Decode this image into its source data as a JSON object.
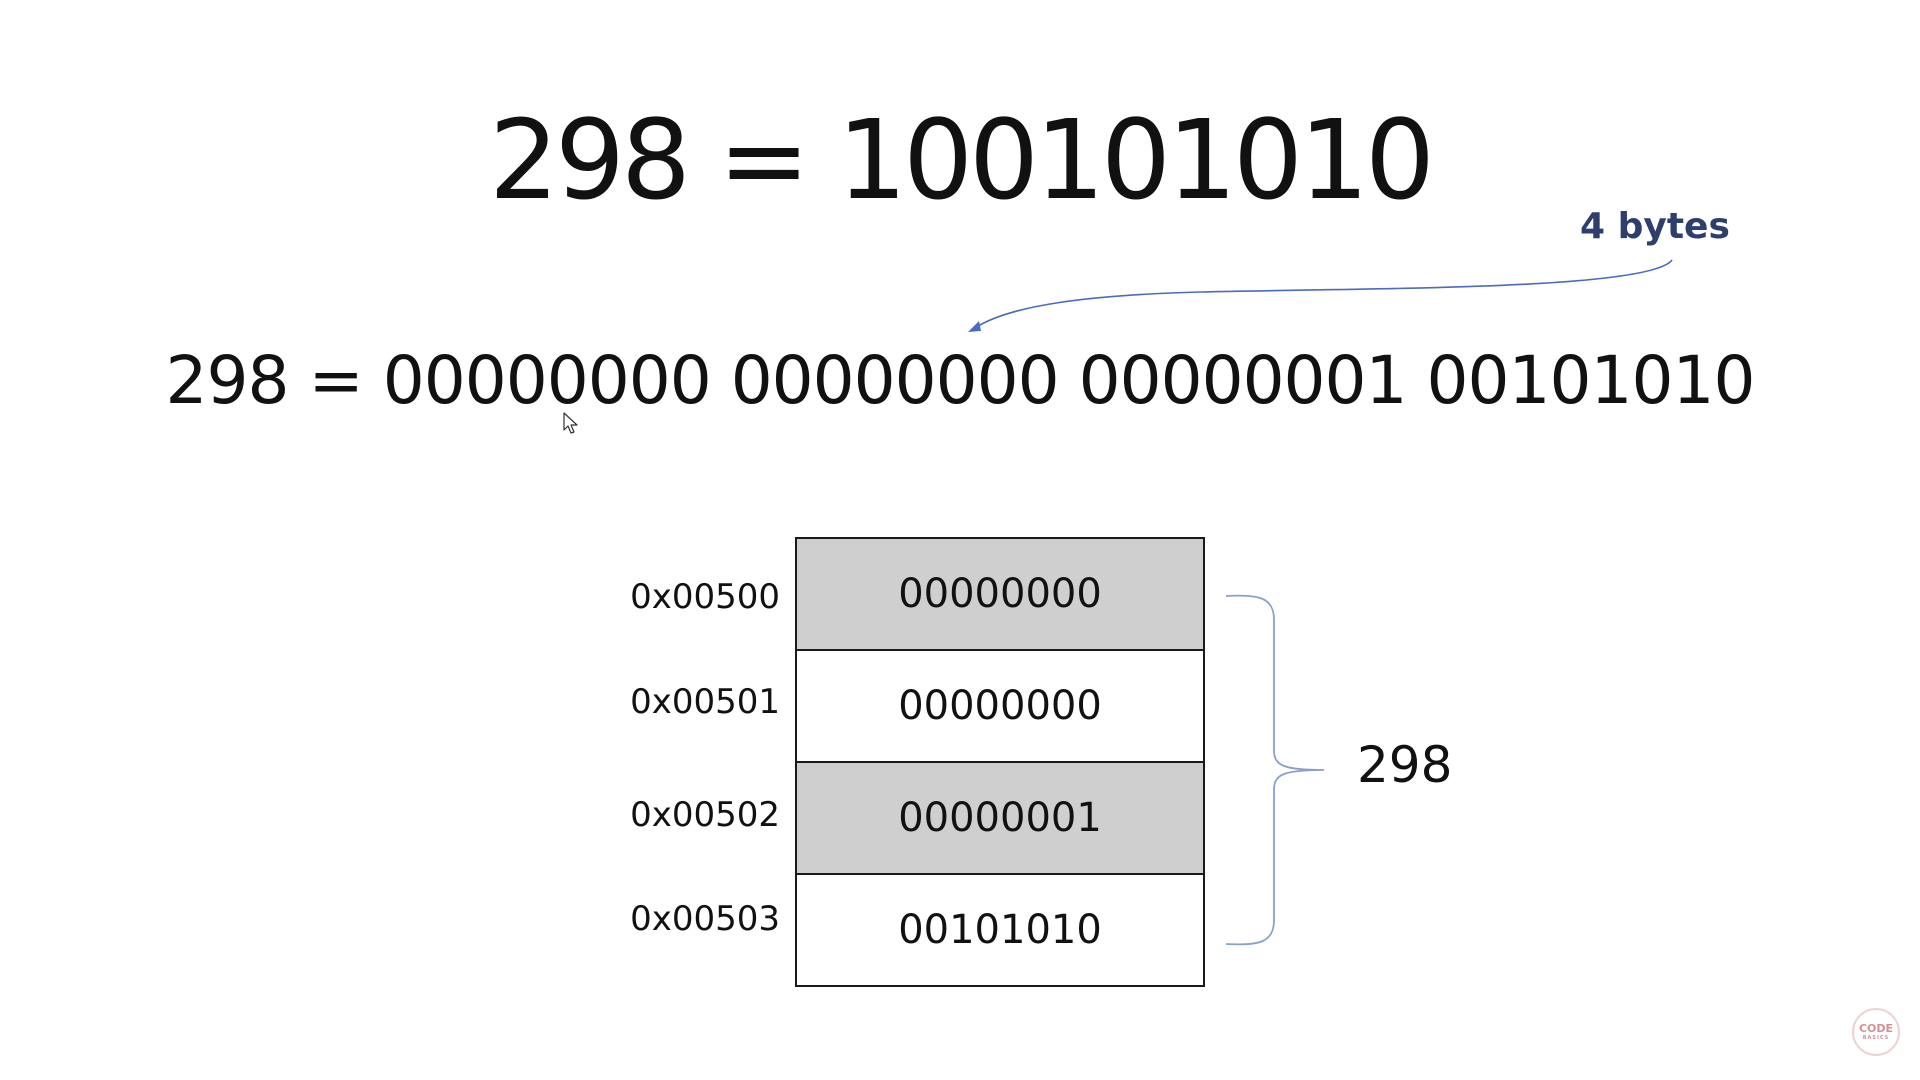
{
  "equations": {
    "short": "298 = 100101010",
    "padded": "298 = 00000000 00000000 00000001 00101010"
  },
  "annotation": {
    "bytes_label": "4 bytes",
    "color": "#2e3f6e",
    "arrow_color": "#4a6bbf"
  },
  "memory": {
    "rows": [
      {
        "address": "0x00500",
        "value": "00000000",
        "shaded": true
      },
      {
        "address": "0x00501",
        "value": "00000000",
        "shaded": false
      },
      {
        "address": "0x00502",
        "value": "00000001",
        "shaded": true
      },
      {
        "address": "0x00503",
        "value": "00101010",
        "shaded": false
      }
    ],
    "shade_color": "#cfcfcf"
  },
  "brace": {
    "label": "298",
    "color": "#8aa0c8"
  },
  "logo": {
    "line1": "CODE",
    "line2": "BASICS"
  }
}
